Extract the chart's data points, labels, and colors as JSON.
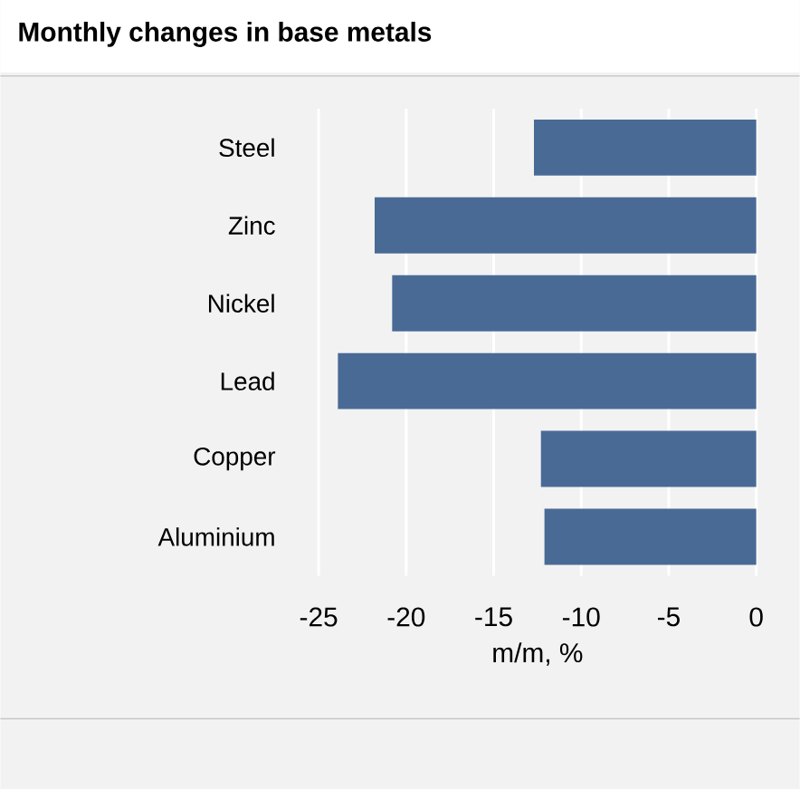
{
  "chart_data": {
    "type": "bar",
    "orientation": "horizontal",
    "title": "Monthly changes in base metals",
    "xlabel": "m/m, %",
    "categories": [
      "Steel",
      "Zinc",
      "Nickel",
      "Lead",
      "Copper",
      "Aluminium"
    ],
    "values": [
      -12.7,
      -21.8,
      -20.8,
      -23.9,
      -12.3,
      -12.1
    ],
    "color": "#4a6a96",
    "xlim": [
      -25,
      0
    ],
    "xticks": [
      -25,
      -20,
      -15,
      -10,
      -5,
      0
    ],
    "grid": "x"
  }
}
